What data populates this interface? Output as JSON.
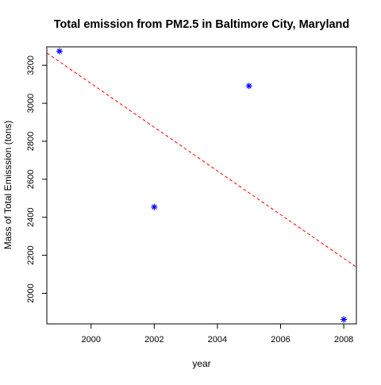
{
  "chart_data": {
    "type": "scatter",
    "title": "Total emission from PM2.5 in Baltimore City, Maryland",
    "xlabel": "year",
    "ylabel": "Mass of Total Emisssion (tons)",
    "xlim": [
      1998.6,
      2008.4
    ],
    "ylim": [
      1839,
      3297
    ],
    "x_ticks": [
      2000,
      2002,
      2004,
      2006,
      2008
    ],
    "y_ticks": [
      2000,
      2200,
      2400,
      2600,
      2800,
      3000,
      3200
    ],
    "grid": false,
    "legend": "none",
    "series": [
      {
        "x": [
          1999,
          2002,
          2005,
          2008
        ],
        "y": [
          3274.18,
          2453.92,
          3091.35,
          1862.28
        ],
        "marker": "asterisk",
        "color": "#0000ff"
      }
    ],
    "trend_line": {
      "style": "dashed",
      "color": "#ff0000",
      "intercept_at": 1999,
      "value_at_x0": 3219,
      "slope": -115
    }
  }
}
